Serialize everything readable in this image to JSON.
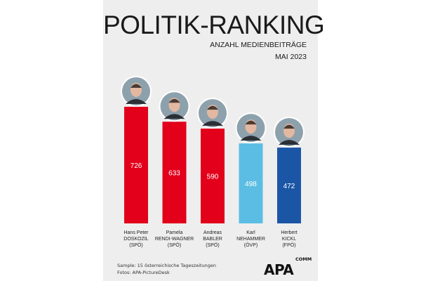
{
  "title": "POLITIK-RANKING",
  "subtitle": "ANZAHL MEDIENBEITRÄGE",
  "month": "MAI 2023",
  "footer": {
    "sample": "Sample: 15 österreichische Tageszeitungen",
    "photos": "Fotos: APA-PictureDesk"
  },
  "logo": {
    "main": "APA",
    "sub": "COMM"
  },
  "colors": {
    "spo": "#e2001a",
    "ovp": "#5bbde3",
    "fpo": "#1b56a6",
    "background": "#eeeeee"
  },
  "chart_data": {
    "type": "bar",
    "title": "POLITIK-RANKING",
    "xlabel": "",
    "ylabel": "Anzahl Medienbeiträge",
    "ylim": [
      0,
      900
    ],
    "categories": [
      {
        "first": "Hans Peter",
        "last": "DOSKOZIL",
        "party": "(SPÖ)"
      },
      {
        "first": "Pamela",
        "last": "RENDI-WAGNER",
        "party": "(SPÖ)"
      },
      {
        "first": "Andreas",
        "last": "BABLER",
        "party": "(SPÖ)"
      },
      {
        "first": "Karl",
        "last": "NEHAMMER",
        "party": "(ÖVP)"
      },
      {
        "first": "Herbert",
        "last": "KICKL",
        "party": "(FPÖ)"
      }
    ],
    "values": [
      726,
      633,
      590,
      498,
      472
    ],
    "bar_colors": [
      "#e2001a",
      "#e2001a",
      "#e2001a",
      "#5bbde3",
      "#1b56a6"
    ]
  }
}
